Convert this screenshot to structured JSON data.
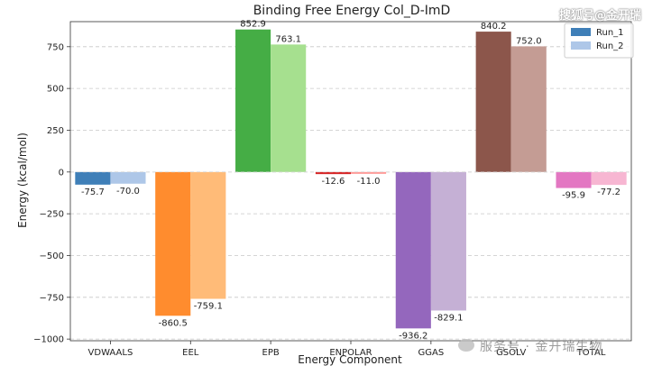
{
  "chart_data": {
    "type": "bar",
    "title": "Binding Free Energy Col_D-ImD",
    "xlabel": "Energy Component",
    "ylabel": "Energy (kcal/mol)",
    "categories": [
      "VDWAALS",
      "EEL",
      "EPB",
      "ENPOLAR",
      "GGAS",
      "GSOLV",
      "TOTAL"
    ],
    "series": [
      {
        "name": "Run_1",
        "values": [
          -75.7,
          -860.5,
          852.9,
          -12.6,
          -936.2,
          840.2,
          -95.9
        ]
      },
      {
        "name": "Run_2",
        "values": [
          -70.0,
          -759.1,
          763.1,
          -11.0,
          -829.1,
          752.0,
          -77.2
        ]
      }
    ],
    "ylim": [
      -1010,
      900
    ],
    "yticks": [
      -1000,
      -750,
      -500,
      -250,
      0,
      250,
      500,
      750
    ],
    "grid": "y-dashed",
    "legend_position": "top-right",
    "colors": {
      "VDWAALS": [
        "#3f7fb8",
        "#aec7e8"
      ],
      "EEL": [
        "#ff8c2e",
        "#ffbb78"
      ],
      "EPB": [
        "#45ad45",
        "#a6e08f"
      ],
      "ENPOLAR": [
        "#d62728",
        "#ff9896"
      ],
      "GGAS": [
        "#9467bd",
        "#c5b0d5"
      ],
      "GSOLV": [
        "#8c564b",
        "#c49c94"
      ],
      "TOTAL": [
        "#e377c2",
        "#f7b6d2"
      ]
    },
    "legend_colors": [
      "#3f7fb8",
      "#aec7e8"
    ]
  },
  "watermark_top": "搜狐号@金开瑞",
  "watermark_bottom": "服务号 · 金开瑞生物"
}
